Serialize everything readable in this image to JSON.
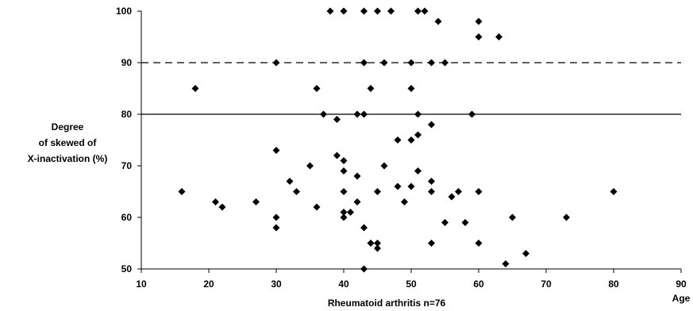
{
  "chart_data": {
    "type": "scatter",
    "xlabel": "Rheumatoid arthritis n=76",
    "xlabel_right": "Age",
    "ylabel_lines": [
      "Degree",
      "of skewed of",
      "X-inactivation (%)"
    ],
    "xlim": [
      10,
      90
    ],
    "ylim": [
      50,
      100
    ],
    "xticks": [
      10,
      20,
      30,
      40,
      50,
      60,
      70,
      80,
      90
    ],
    "yticks": [
      50,
      60,
      70,
      80,
      90,
      100
    ],
    "reference_lines": [
      {
        "y": 90,
        "style": "dashed"
      },
      {
        "y": 80,
        "style": "solid"
      }
    ],
    "marker": "diamond",
    "marker_color": "#000000",
    "points": [
      {
        "x": 16,
        "y": 65
      },
      {
        "x": 18,
        "y": 85
      },
      {
        "x": 21,
        "y": 63
      },
      {
        "x": 22,
        "y": 62
      },
      {
        "x": 27,
        "y": 63
      },
      {
        "x": 30,
        "y": 90
      },
      {
        "x": 30,
        "y": 73
      },
      {
        "x": 30,
        "y": 60
      },
      {
        "x": 30,
        "y": 58
      },
      {
        "x": 32,
        "y": 67
      },
      {
        "x": 33,
        "y": 65
      },
      {
        "x": 35,
        "y": 70
      },
      {
        "x": 36,
        "y": 85
      },
      {
        "x": 36,
        "y": 62
      },
      {
        "x": 37,
        "y": 80
      },
      {
        "x": 38,
        "y": 100
      },
      {
        "x": 39,
        "y": 79
      },
      {
        "x": 39,
        "y": 72
      },
      {
        "x": 40,
        "y": 100
      },
      {
        "x": 40,
        "y": 71
      },
      {
        "x": 40,
        "y": 69
      },
      {
        "x": 40,
        "y": 65
      },
      {
        "x": 40,
        "y": 61
      },
      {
        "x": 40,
        "y": 60
      },
      {
        "x": 41,
        "y": 61
      },
      {
        "x": 42,
        "y": 80
      },
      {
        "x": 42,
        "y": 68
      },
      {
        "x": 42,
        "y": 63
      },
      {
        "x": 43,
        "y": 100
      },
      {
        "x": 43,
        "y": 90
      },
      {
        "x": 43,
        "y": 80
      },
      {
        "x": 43,
        "y": 58
      },
      {
        "x": 43,
        "y": 50
      },
      {
        "x": 44,
        "y": 85
      },
      {
        "x": 44,
        "y": 55
      },
      {
        "x": 45,
        "y": 100
      },
      {
        "x": 45,
        "y": 65
      },
      {
        "x": 45,
        "y": 55
      },
      {
        "x": 45,
        "y": 54
      },
      {
        "x": 46,
        "y": 90
      },
      {
        "x": 46,
        "y": 70
      },
      {
        "x": 47,
        "y": 100
      },
      {
        "x": 48,
        "y": 75
      },
      {
        "x": 48,
        "y": 66
      },
      {
        "x": 49,
        "y": 63
      },
      {
        "x": 50,
        "y": 90
      },
      {
        "x": 50,
        "y": 85
      },
      {
        "x": 50,
        "y": 75
      },
      {
        "x": 50,
        "y": 66
      },
      {
        "x": 51,
        "y": 100
      },
      {
        "x": 51,
        "y": 80
      },
      {
        "x": 51,
        "y": 76
      },
      {
        "x": 51,
        "y": 69
      },
      {
        "x": 52,
        "y": 100
      },
      {
        "x": 53,
        "y": 90
      },
      {
        "x": 53,
        "y": 78
      },
      {
        "x": 53,
        "y": 67
      },
      {
        "x": 53,
        "y": 65
      },
      {
        "x": 53,
        "y": 55
      },
      {
        "x": 54,
        "y": 98
      },
      {
        "x": 55,
        "y": 90
      },
      {
        "x": 55,
        "y": 59
      },
      {
        "x": 56,
        "y": 64
      },
      {
        "x": 57,
        "y": 65
      },
      {
        "x": 58,
        "y": 59
      },
      {
        "x": 59,
        "y": 80
      },
      {
        "x": 60,
        "y": 98
      },
      {
        "x": 60,
        "y": 95
      },
      {
        "x": 60,
        "y": 65
      },
      {
        "x": 60,
        "y": 55
      },
      {
        "x": 63,
        "y": 95
      },
      {
        "x": 64,
        "y": 51
      },
      {
        "x": 65,
        "y": 60
      },
      {
        "x": 67,
        "y": 53
      },
      {
        "x": 73,
        "y": 60
      },
      {
        "x": 80,
        "y": 65
      }
    ]
  }
}
